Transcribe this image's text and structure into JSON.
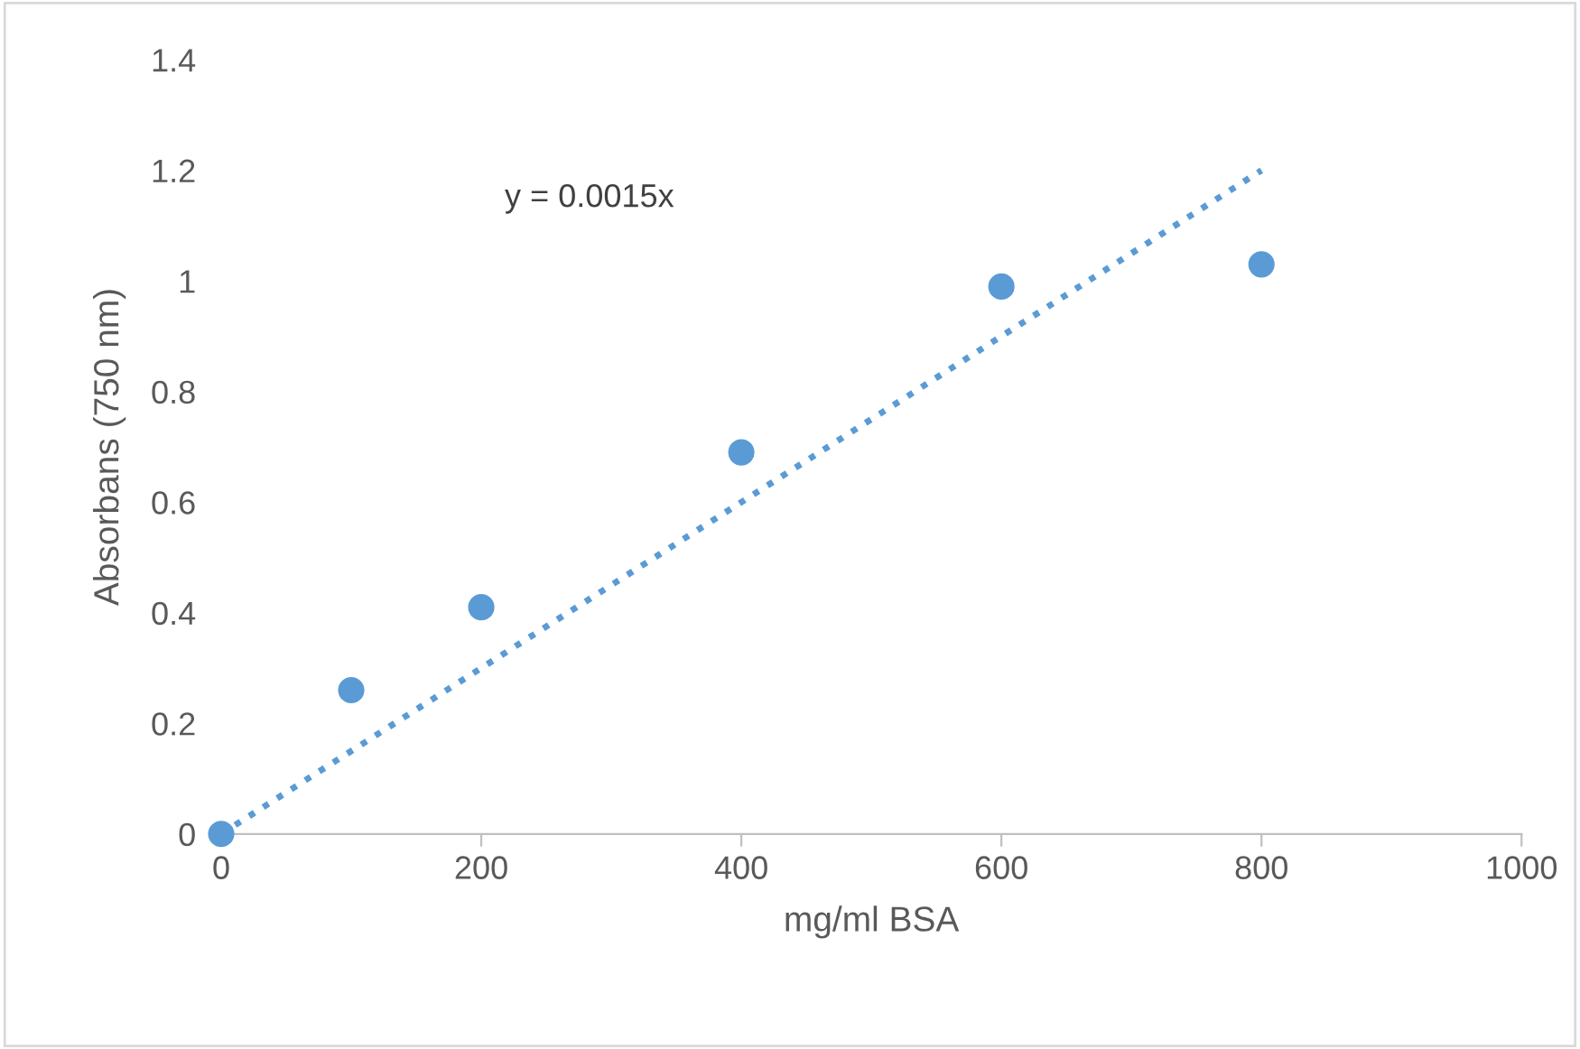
{
  "chart_data": {
    "type": "scatter",
    "xlabel": "mg/ml BSA",
    "ylabel": "Absorbans (750 nm)",
    "x": [
      0,
      100,
      200,
      400,
      600,
      800
    ],
    "series": [
      {
        "color": "#5b9bd5",
        "values": [
          0,
          0.26,
          0.41,
          0.69,
          0.99,
          1.03
        ]
      },
      {
        "type": "line",
        "color": "#5b9bd5",
        "x": [
          0,
          800
        ],
        "values": [
          0,
          1.2
        ],
        "line_style": "dotted",
        "marker": "none"
      }
    ],
    "marker": "circle",
    "annotations": [
      "y = 0.0015x"
    ],
    "xlim": [
      0,
      1000
    ],
    "xticks": [
      0,
      200,
      400,
      600,
      800,
      1000
    ],
    "ylim": [
      0,
      1.4
    ],
    "yticks": [
      0,
      0.2,
      0.4,
      0.6,
      0.8,
      1,
      1.2,
      1.4
    ],
    "grid": false,
    "legend": false
  }
}
